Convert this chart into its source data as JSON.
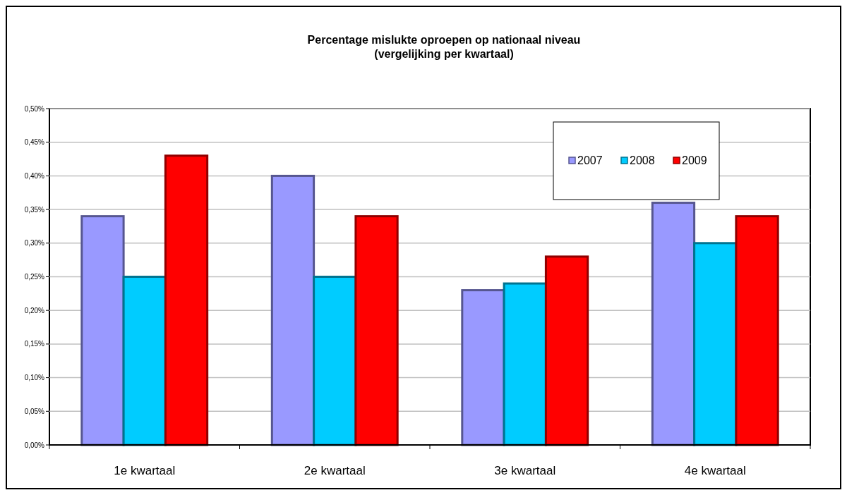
{
  "chart_data": {
    "type": "bar",
    "title": "Percentage mislukte oproepen op nationaal niveau\n(vergelijking per kwartaal)",
    "categories": [
      "1e kwartaal",
      "2e kwartaal",
      "3e kwartaal",
      "4e kwartaal"
    ],
    "series": [
      {
        "name": "2007",
        "color": "#9999ff",
        "values": [
          0.34,
          0.4,
          0.23,
          0.36
        ]
      },
      {
        "name": "2008",
        "color": "#00ccff",
        "values": [
          0.25,
          0.25,
          0.24,
          0.3
        ]
      },
      {
        "name": "2009",
        "color": "#ff0000",
        "values": [
          0.43,
          0.34,
          0.28,
          0.34
        ]
      }
    ],
    "ylim": [
      0,
      0.5
    ],
    "yticks": [
      {
        "value": 0,
        "label": "0,00%"
      },
      {
        "value": 0.05,
        "label": "0,05%"
      },
      {
        "value": 0.1,
        "label": "0,10%"
      },
      {
        "value": 0.15,
        "label": "0,15%"
      },
      {
        "value": 0.2,
        "label": "0,20%"
      },
      {
        "value": 0.25,
        "label": "0,25%"
      },
      {
        "value": 0.3,
        "label": "0,30%"
      },
      {
        "value": 0.35,
        "label": "0,35%"
      },
      {
        "value": 0.4,
        "label": "0,40%"
      },
      {
        "value": 0.45,
        "label": "0,45%"
      },
      {
        "value": 0.5,
        "label": "0,50%"
      }
    ],
    "grid": "y",
    "legend": "top right"
  }
}
